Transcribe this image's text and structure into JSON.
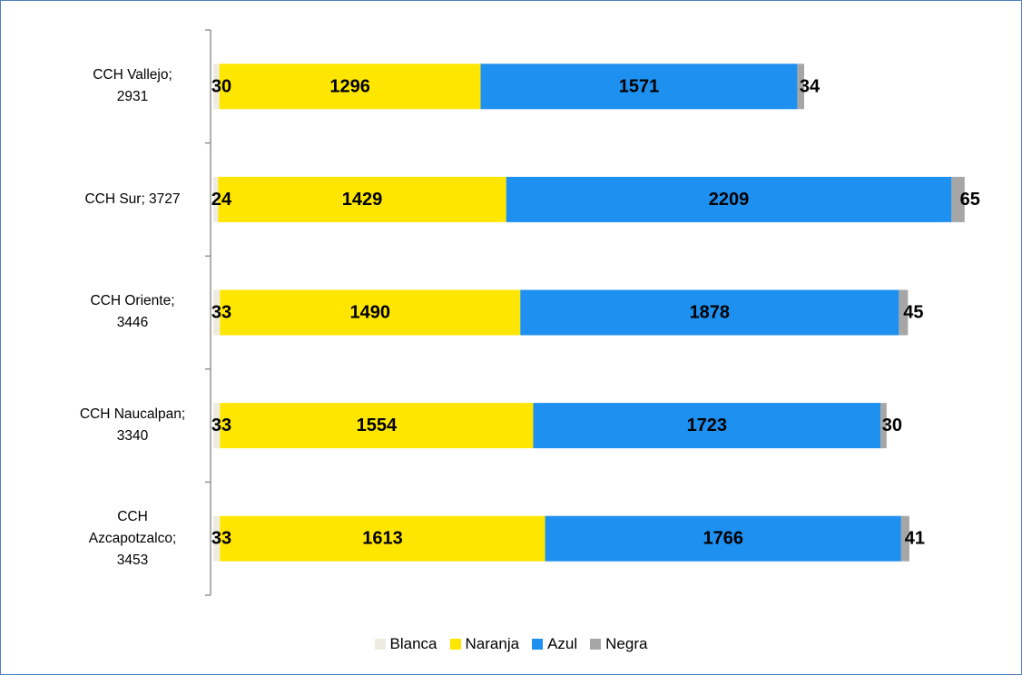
{
  "chart_data": {
    "type": "stacked_bar_horizontal",
    "categories": [
      "CCH Vallejo; 2931",
      "CCH Sur; 3727",
      "CCH Oriente; 3446",
      "CCH Naucalpan; 3340",
      "CCH Azcapotzalco; 3453"
    ],
    "series": [
      {
        "name": "Blanca",
        "color": "#eeece1",
        "values": [
          30,
          24,
          33,
          33,
          33
        ]
      },
      {
        "name": "Naranja",
        "color": "#ffe600",
        "values": [
          1296,
          1429,
          1490,
          1554,
          1613
        ]
      },
      {
        "name": "Azul",
        "color": "#1e90f0",
        "values": [
          1571,
          2209,
          1878,
          1723,
          1766
        ]
      },
      {
        "name": "Negra",
        "color": "#a6a6a6",
        "values": [
          34,
          65,
          45,
          30,
          41
        ]
      }
    ],
    "xlim": [
      0,
      3800
    ],
    "legend": "bottom"
  }
}
